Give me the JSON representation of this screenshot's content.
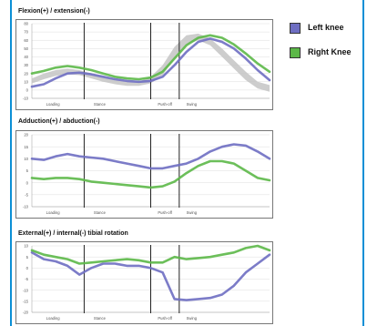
{
  "colors": {
    "left_knee": "#6e6ec2",
    "right_knee": "#5cb848",
    "normal_band": "#c4c4c4",
    "frame_accent": "#0b8fd6"
  },
  "legend": [
    {
      "label": "Left knee",
      "color": "#6e6ec2"
    },
    {
      "label": "Right Knee",
      "color": "#5cb848"
    }
  ],
  "chart_data": [
    {
      "type": "line",
      "title": "Flexion(+) / extension(-)",
      "xlim": [
        0,
        100
      ],
      "ylim": [
        -10,
        80
      ],
      "yticks": [
        80,
        70,
        60,
        50,
        40,
        30,
        20,
        10,
        0,
        -10
      ],
      "phase_lines": [
        22,
        50,
        62
      ],
      "phase_labels": [
        {
          "text": "Loading",
          "x": 6
        },
        {
          "text": "Stance",
          "x": 26
        },
        {
          "text": "Push-off",
          "x": 53
        },
        {
          "text": "Swing",
          "x": 65
        }
      ],
      "normal_band": {
        "x": [
          0,
          5,
          10,
          15,
          20,
          25,
          30,
          35,
          40,
          45,
          50,
          55,
          60,
          65,
          70,
          75,
          80,
          85,
          90,
          95,
          100
        ],
        "upper": [
          14,
          20,
          24,
          26,
          24,
          20,
          15,
          12,
          10,
          10,
          16,
          30,
          52,
          66,
          68,
          62,
          50,
          36,
          22,
          10,
          6
        ],
        "lower": [
          8,
          13,
          17,
          19,
          18,
          14,
          10,
          7,
          5,
          5,
          8,
          18,
          38,
          55,
          60,
          54,
          40,
          26,
          12,
          2,
          -2
        ]
      },
      "series": [
        {
          "name": "Left knee",
          "color": "#6e6ec2",
          "x": [
            0,
            5,
            10,
            15,
            20,
            25,
            30,
            35,
            40,
            45,
            50,
            55,
            60,
            65,
            70,
            75,
            80,
            85,
            90,
            95,
            100
          ],
          "y": [
            4,
            7,
            14,
            20,
            21,
            19,
            16,
            13,
            11,
            10,
            11,
            16,
            30,
            46,
            58,
            62,
            58,
            50,
            38,
            24,
            12
          ]
        },
        {
          "name": "Right Knee",
          "color": "#5cb848",
          "x": [
            0,
            5,
            10,
            15,
            20,
            25,
            30,
            35,
            40,
            45,
            50,
            55,
            60,
            65,
            70,
            75,
            80,
            85,
            90,
            95,
            100
          ],
          "y": [
            20,
            23,
            27,
            29,
            27,
            24,
            20,
            16,
            14,
            13,
            15,
            22,
            38,
            54,
            63,
            66,
            63,
            55,
            44,
            32,
            22
          ]
        }
      ]
    },
    {
      "type": "line",
      "title": "Adduction(+) / abduction(-)",
      "xlim": [
        0,
        100
      ],
      "ylim": [
        -10,
        20
      ],
      "yticks": [
        20,
        15,
        10,
        5,
        0,
        -5,
        -10
      ],
      "phase_lines": [
        22,
        50,
        62
      ],
      "phase_labels": [
        {
          "text": "Loading",
          "x": 6
        },
        {
          "text": "Stance",
          "x": 26
        },
        {
          "text": "Push-off",
          "x": 53
        },
        {
          "text": "Swing",
          "x": 65
        }
      ],
      "series": [
        {
          "name": "Left knee",
          "color": "#6e6ec2",
          "x": [
            0,
            5,
            10,
            15,
            20,
            25,
            30,
            35,
            40,
            45,
            50,
            55,
            60,
            65,
            70,
            75,
            80,
            85,
            90,
            95,
            100
          ],
          "y": [
            10,
            9.5,
            11,
            12,
            11,
            10.5,
            10,
            9,
            8,
            7,
            6,
            6,
            7,
            8,
            10,
            13,
            15,
            16,
            15.5,
            13,
            10
          ]
        },
        {
          "name": "Right Knee",
          "color": "#5cb848",
          "x": [
            0,
            5,
            10,
            15,
            20,
            25,
            30,
            35,
            40,
            45,
            50,
            55,
            60,
            65,
            70,
            75,
            80,
            85,
            90,
            95,
            100
          ],
          "y": [
            2,
            1.5,
            2,
            2,
            1.5,
            0.5,
            0,
            -0.5,
            -1,
            -1.5,
            -2,
            -1.5,
            0.5,
            4,
            7,
            9,
            9,
            8,
            5,
            2,
            1
          ]
        }
      ]
    },
    {
      "type": "line",
      "title": "External(+) / internal(-) tibial rotation",
      "xlim": [
        0,
        100
      ],
      "ylim": [
        -20,
        10
      ],
      "yticks": [
        10,
        5,
        0,
        -5,
        -10,
        -15,
        -20
      ],
      "phase_lines": [
        22,
        50,
        62
      ],
      "phase_labels": [
        {
          "text": "Loading",
          "x": 6
        },
        {
          "text": "Stance",
          "x": 26
        },
        {
          "text": "Push-off",
          "x": 53
        },
        {
          "text": "Swing",
          "x": 65
        }
      ],
      "series": [
        {
          "name": "Left knee",
          "color": "#6e6ec2",
          "x": [
            0,
            5,
            10,
            15,
            20,
            25,
            30,
            35,
            40,
            45,
            50,
            55,
            60,
            65,
            70,
            75,
            80,
            85,
            90,
            95,
            100
          ],
          "y": [
            7,
            4,
            3,
            1,
            -3,
            0,
            2,
            2,
            1,
            1,
            0,
            -2,
            -14,
            -14.5,
            -14,
            -13.5,
            -12,
            -8,
            -2,
            2,
            6
          ]
        },
        {
          "name": "Right Knee",
          "color": "#5cb848",
          "x": [
            0,
            5,
            10,
            15,
            20,
            25,
            30,
            35,
            40,
            45,
            50,
            55,
            60,
            65,
            70,
            75,
            80,
            85,
            90,
            95,
            100
          ],
          "y": [
            8,
            6,
            5,
            4,
            2,
            2.5,
            3,
            3.5,
            4,
            3.5,
            2.5,
            2.5,
            5,
            4,
            4.5,
            5,
            6,
            7,
            9,
            10,
            8
          ]
        }
      ]
    }
  ]
}
